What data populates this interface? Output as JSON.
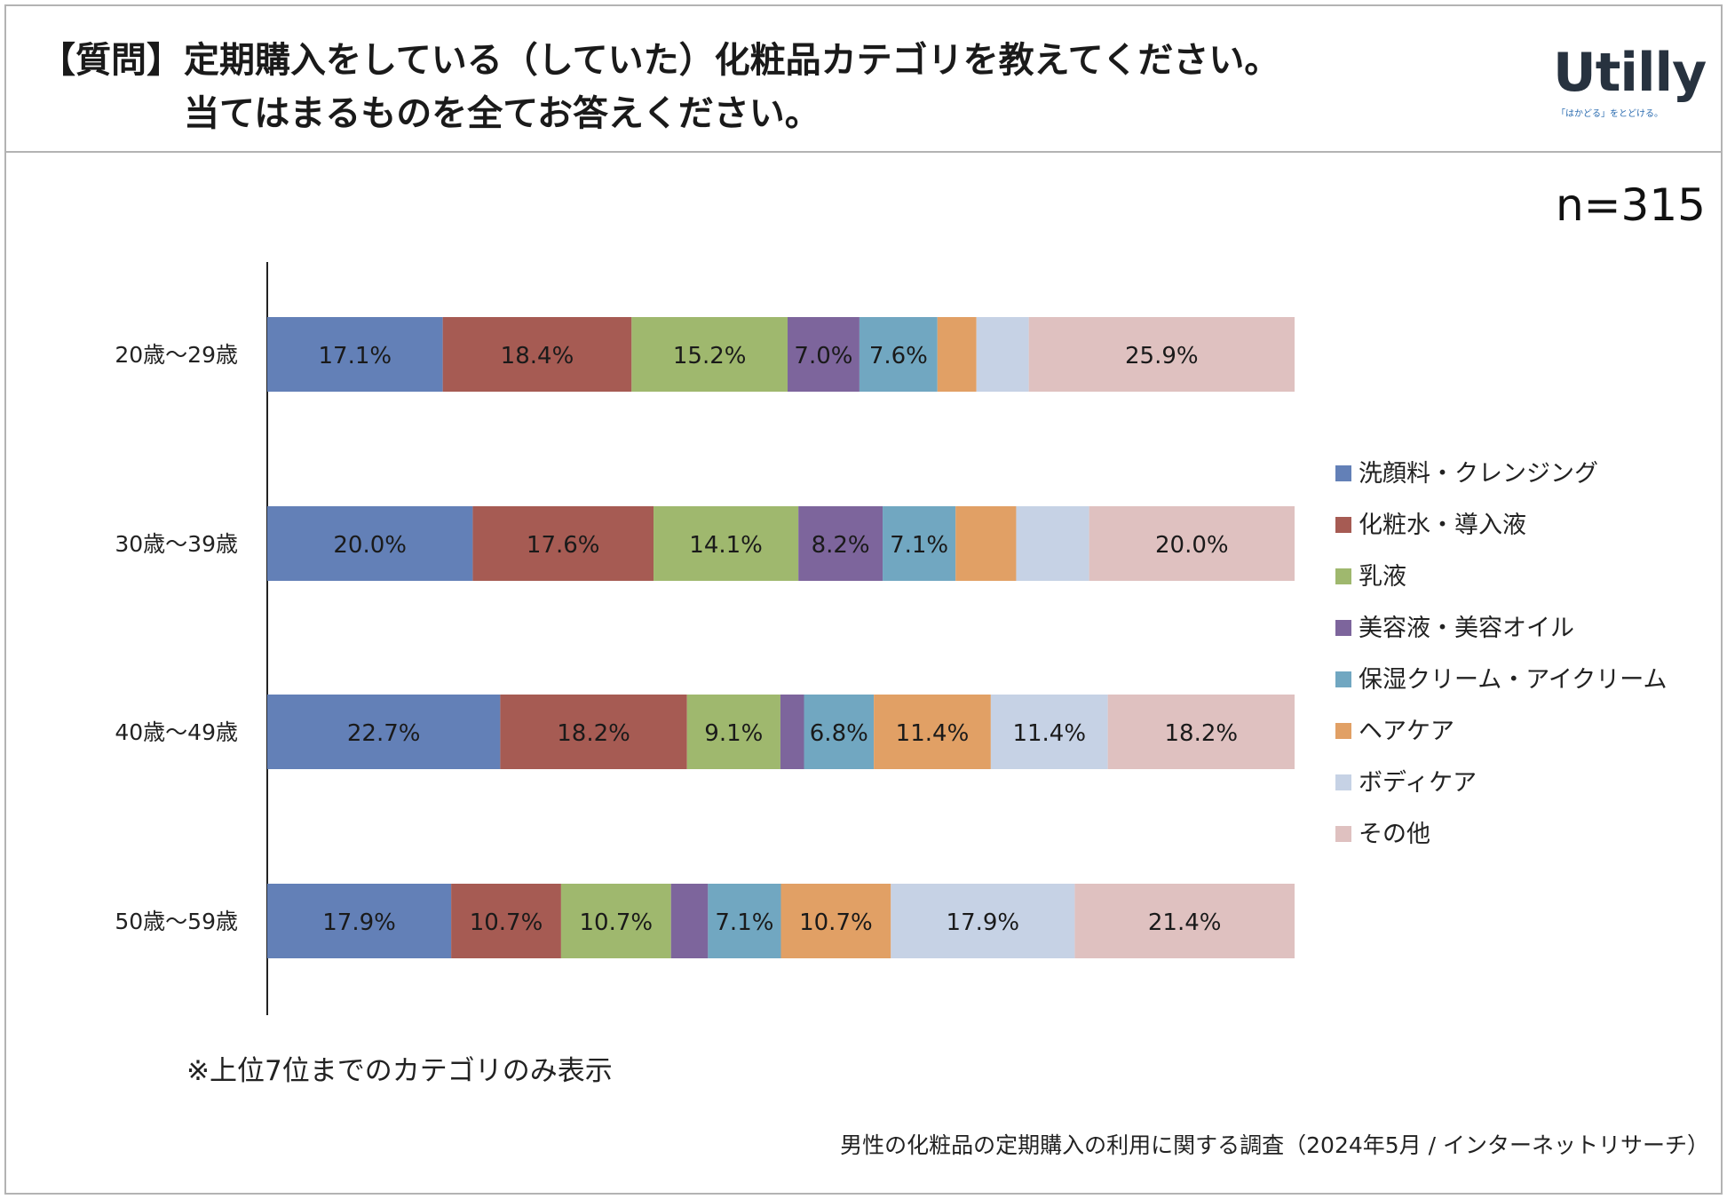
{
  "header": {
    "prefix": "【質問】",
    "line1": "定期購入をしている（していた）化粧品カテゴリを教えてください。",
    "line2": "当てはまるものを全てお答えください。"
  },
  "logo": {
    "word": "Utilly",
    "tagline": "「はかどる」をとどける。"
  },
  "n_label": "n=315",
  "note": "※上位7位までのカテゴリのみ表示",
  "source": "男性の化粧品の定期購入の利用に関する調査（2024年5月 / インターネットリサーチ）",
  "chart_data": {
    "type": "bar",
    "orientation": "horizontal",
    "stacked": "100%",
    "categories": [
      "20歳～29歳",
      "30歳～39歳",
      "40歳～49歳",
      "50歳～59歳"
    ],
    "series": [
      {
        "name": "洗顔料・クレンジング",
        "color": "#6380b7",
        "values": [
          17.1,
          20.0,
          22.7,
          17.9
        ],
        "labels": [
          "17.1%",
          "20.0%",
          "22.7%",
          "17.9%"
        ]
      },
      {
        "name": "化粧水・導入液",
        "color": "#a65b53",
        "values": [
          18.4,
          17.6,
          18.2,
          10.7
        ],
        "labels": [
          "18.4%",
          "17.6%",
          "18.2%",
          "10.7%"
        ]
      },
      {
        "name": "乳液",
        "color": "#9fb86e",
        "values": [
          15.2,
          14.1,
          9.1,
          10.7
        ],
        "labels": [
          "15.2%",
          "14.1%",
          "9.1%",
          "10.7%"
        ]
      },
      {
        "name": "美容液・美容オイル",
        "color": "#7d659c",
        "values": [
          7.0,
          8.2,
          2.3,
          3.6
        ],
        "labels": [
          "7.0%",
          "8.2%",
          "",
          ""
        ]
      },
      {
        "name": "保湿クリーム・アイクリーム",
        "color": "#71a7c1",
        "values": [
          7.6,
          7.1,
          6.8,
          7.1
        ],
        "labels": [
          "7.6%",
          "7.1%",
          "6.8%",
          "7.1%"
        ]
      },
      {
        "name": "ヘアケア",
        "color": "#e1a065",
        "values": [
          3.8,
          5.9,
          11.4,
          10.7
        ],
        "labels": [
          "",
          "",
          "11.4%",
          "10.7%"
        ]
      },
      {
        "name": "ボディケア",
        "color": "#c6d2e5",
        "values": [
          5.1,
          7.1,
          11.4,
          17.9
        ],
        "labels": [
          "",
          "",
          "11.4%",
          "17.9%"
        ]
      },
      {
        "name": "その他",
        "color": "#dfc1c0",
        "values": [
          25.9,
          20.0,
          18.2,
          21.4
        ],
        "labels": [
          "25.9%",
          "20.0%",
          "18.2%",
          "21.4%"
        ]
      }
    ]
  }
}
